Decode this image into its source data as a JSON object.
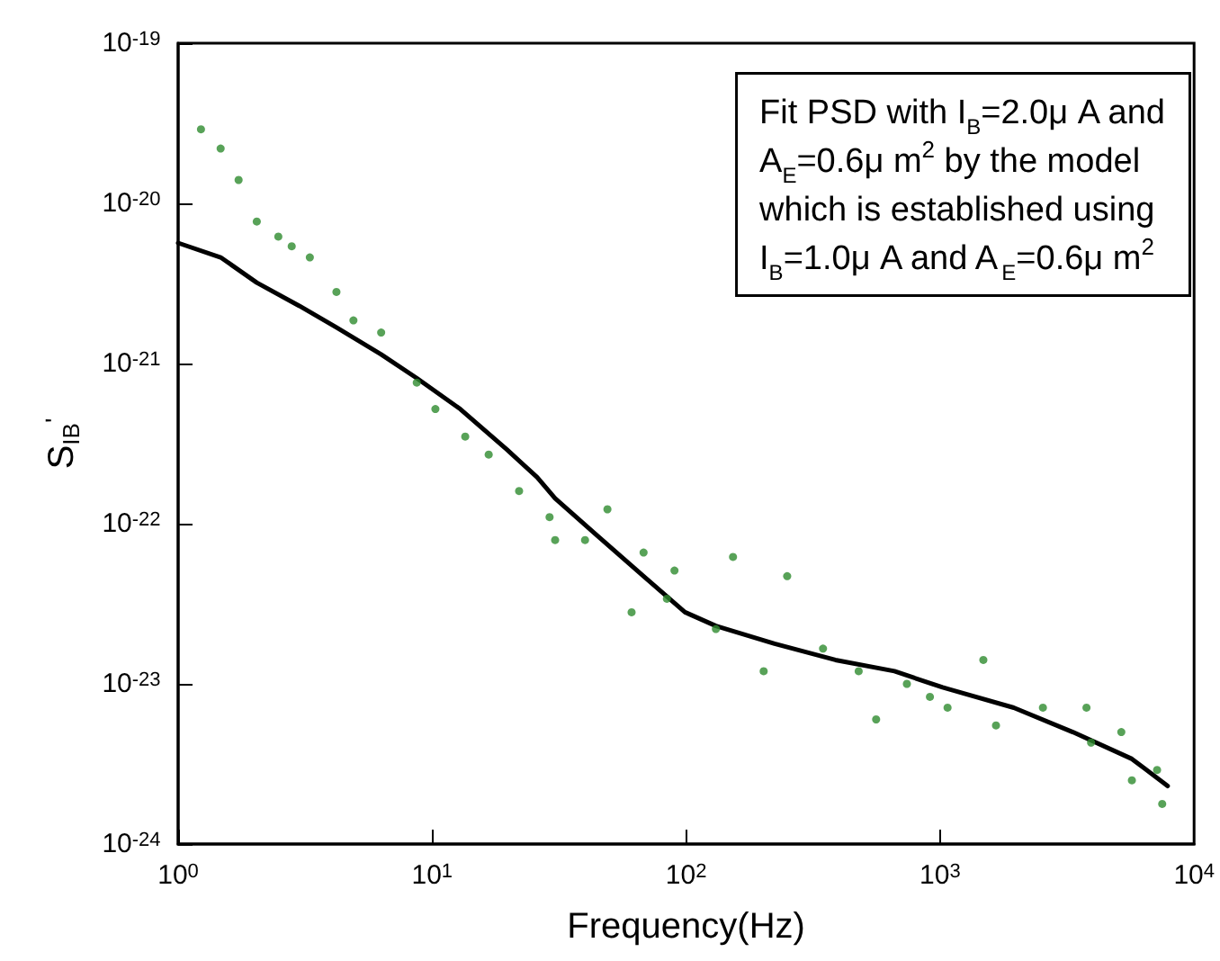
{
  "chart_data": {
    "type": "scatter",
    "xlabel": "Frequency(Hz)",
    "ylabel": "S$_{IB}$$^{'}$",
    "log": "xy",
    "grid": false,
    "xlim": [
      1,
      10000
    ],
    "ylim": [
      1e-24,
      1e-19
    ],
    "xticks": [
      {
        "value": 1,
        "label": "10$^{0}$"
      },
      {
        "value": 10,
        "label": "10$^{1}$"
      },
      {
        "value": 100,
        "label": "10$^{2}$"
      },
      {
        "value": 1000,
        "label": "10$^{3}$"
      },
      {
        "value": 10000,
        "label": "10$^{4}$"
      }
    ],
    "yticks": [
      {
        "value": 1e-24,
        "label": "10$^{-24}$"
      },
      {
        "value": 1e-23,
        "label": "10$^{-23}$"
      },
      {
        "value": 1e-22,
        "label": "10$^{-22}$"
      },
      {
        "value": 1e-21,
        "label": "10$^{-21}$"
      },
      {
        "value": 1e-20,
        "label": "10$^{-20}$"
      },
      {
        "value": 1e-19,
        "label": "10$^{-19}$"
      }
    ],
    "annotations": [
      "Fit PSD with I$_{B}$=2.0μ A and\nA$_{E}$=0.6μ m$^{2}$ by the model\nwhich is established using\nI$_{B}$=1.0μ A and A$_{E}$=0.6μ m$^{2}$"
    ],
    "series": [
      {
        "marker": "circle",
        "color": "#2e8b2e",
        "x": [
          1.23,
          1.47,
          1.73,
          2.04,
          2.48,
          2.8,
          3.3,
          4.2,
          4.9,
          6.3,
          8.7,
          10.3,
          13.5,
          16.7,
          22,
          29,
          30.5,
          40,
          49,
          68,
          90,
          84,
          61,
          153,
          250,
          202,
          131,
          346,
          478,
          560,
          740,
          912,
          1070,
          1480,
          1660,
          2540,
          3770,
          3930,
          5170,
          5690,
          7490,
          7150
        ],
        "values": [
          2.9e-20,
          2.2e-20,
          1.4e-20,
          7.7e-21,
          6.2e-21,
          5.4e-21,
          4.6e-21,
          2.8e-21,
          1.86e-21,
          1.56e-21,
          7.6e-22,
          5.2e-22,
          3.5e-22,
          2.7e-22,
          1.6e-22,
          1.1e-22,
          7.9e-23,
          7.9e-23,
          1.23e-22,
          6.6e-23,
          5.1e-23,
          3.4e-23,
          2.8e-23,
          6.2e-23,
          4.7e-23,
          1.2e-23,
          2.2e-23,
          1.66e-23,
          1.2e-23,
          6e-24,
          1e-23,
          8.3e-24,
          7.1e-24,
          1.41e-23,
          5.5e-24,
          7.1e-24,
          7.1e-24,
          4.3e-24,
          5e-24,
          2.5e-24,
          1.78e-24,
          2.9e-24
        ]
      },
      {
        "type": "line",
        "marker": "none",
        "line_style": "solid",
        "color": "#000000",
        "x": [
          1,
          1.47,
          2.04,
          3.0,
          4.2,
          6.3,
          8.7,
          12.9,
          19.7,
          25.9,
          30.5,
          44,
          68,
          99,
          131,
          223,
          387,
          661,
          1023,
          1950,
          3330,
          5690,
          7870
        ],
        "values": [
          5.66e-21,
          4.6e-21,
          3.2e-21,
          2.29e-21,
          1.68e-21,
          1.14e-21,
          8.1e-22,
          5.2e-22,
          2.9e-22,
          1.95e-22,
          1.44e-22,
          8.6e-23,
          4.7e-23,
          2.8e-23,
          2.3e-23,
          1.78e-23,
          1.41e-23,
          1.2e-23,
          9.5e-24,
          7.1e-24,
          5e-24,
          3.4e-24,
          2.3e-24
        ]
      }
    ]
  }
}
